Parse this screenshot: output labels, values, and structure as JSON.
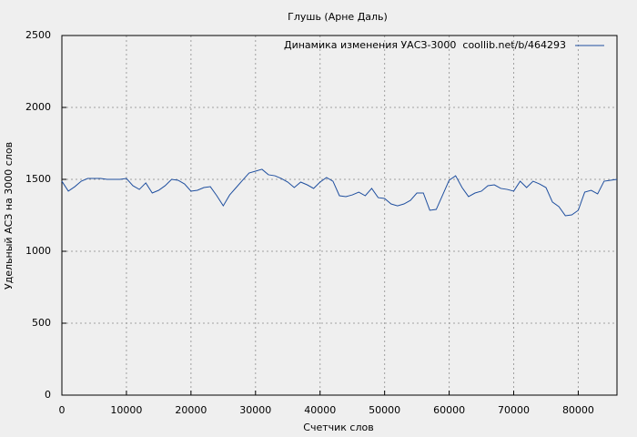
{
  "chart_data": {
    "type": "line",
    "title": "Глушь (Арне Даль)",
    "x_label": "Счетчик слов",
    "y_label": "Удельный АСЗ на 3000 слов",
    "x": [
      0,
      1000,
      2000,
      3000,
      4000,
      5000,
      6000,
      7000,
      8000,
      9000,
      10000,
      11000,
      12000,
      13000,
      14000,
      15000,
      16000,
      17000,
      18000,
      19000,
      20000,
      21000,
      22000,
      23000,
      24000,
      25000,
      26000,
      27000,
      28000,
      29000,
      30000,
      31000,
      32000,
      33000,
      34000,
      35000,
      36000,
      37000,
      38000,
      39000,
      40000,
      41000,
      42000,
      43000,
      44000,
      45000,
      46000,
      47000,
      48000,
      49000,
      50000,
      51000,
      52000,
      53000,
      54000,
      55000,
      56000,
      57000,
      58000,
      59000,
      60000,
      61000,
      62000,
      63000,
      64000,
      65000,
      66000,
      67000,
      68000,
      69000,
      70000,
      71000,
      72000,
      73000,
      74000,
      75000,
      76000,
      77000,
      78000,
      79000,
      80000,
      81000,
      82000,
      83000,
      84000,
      85000,
      86000
    ],
    "series": [
      {
        "name": "Динамика изменения УАСЗ-3000  coollib.net/b/464293",
        "color": "#1f4f9f",
        "values": [
          1487,
          1418,
          1449,
          1487,
          1506,
          1506,
          1506,
          1500,
          1500,
          1500,
          1506,
          1456,
          1430,
          1475,
          1405,
          1424,
          1456,
          1500,
          1494,
          1468,
          1418,
          1424,
          1443,
          1449,
          1386,
          1316,
          1392,
          1443,
          1494,
          1544,
          1557,
          1570,
          1532,
          1525,
          1506,
          1481,
          1443,
          1481,
          1462,
          1437,
          1481,
          1513,
          1487,
          1386,
          1380,
          1392,
          1411,
          1386,
          1437,
          1373,
          1367,
          1329,
          1316,
          1329,
          1354,
          1405,
          1405,
          1285,
          1291,
          1392,
          1494,
          1525,
          1443,
          1380,
          1405,
          1418,
          1456,
          1462,
          1437,
          1430,
          1418,
          1487,
          1443,
          1487,
          1468,
          1443,
          1342,
          1310,
          1247,
          1253,
          1285,
          1411,
          1424,
          1399,
          1487,
          1494,
          1500
        ]
      }
    ],
    "xlim": [
      0,
      86000
    ],
    "ylim": [
      0,
      2500
    ],
    "xticks": [
      0,
      10000,
      20000,
      30000,
      40000,
      50000,
      60000,
      70000,
      80000
    ],
    "yticks": [
      0,
      500,
      1000,
      1500,
      2000,
      2500
    ],
    "grid": true,
    "legend": "top-right"
  }
}
